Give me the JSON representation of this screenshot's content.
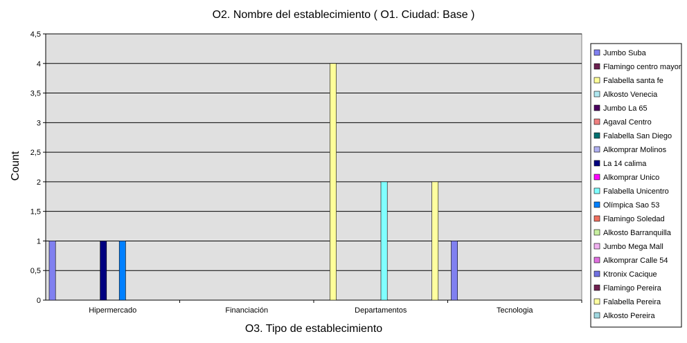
{
  "chart_data": {
    "type": "bar",
    "title": "O2. Nombre del establecimiento ( O1. Ciudad: Base )",
    "xlabel": "O3. Tipo de establecimiento",
    "ylabel": "Count",
    "categories": [
      "Hipermercado",
      "Financiación",
      "Departamentos",
      "Tecnologia"
    ],
    "ylim": [
      0,
      4.5
    ],
    "yticks": [
      "0",
      "0,5",
      "1",
      "1,5",
      "2",
      "2,5",
      "3",
      "3,5",
      "4",
      "4,5"
    ],
    "grid": true,
    "legend_position": "right",
    "plot_background": "#e0e0e0",
    "series": [
      {
        "name": "Jumbo Suba",
        "color": "#8080f0",
        "values": [
          1,
          0,
          0,
          1
        ]
      },
      {
        "name": "Flamingo centro mayor",
        "color": "#6b2050",
        "values": [
          0,
          0,
          0,
          0
        ]
      },
      {
        "name": "Falabella santa fe",
        "color": "#ffff99",
        "values": [
          0,
          0,
          4,
          0
        ]
      },
      {
        "name": "Alkosto Venecia",
        "color": "#b0e8f0",
        "values": [
          0,
          0,
          0,
          0
        ]
      },
      {
        "name": "Jumbo La 65",
        "color": "#4b0060",
        "values": [
          0,
          0,
          0,
          0
        ]
      },
      {
        "name": "Agaval Centro",
        "color": "#f08080",
        "values": [
          0,
          0,
          0,
          0
        ]
      },
      {
        "name": "Falabella San Diego",
        "color": "#007070",
        "values": [
          0,
          0,
          0,
          0
        ]
      },
      {
        "name": "Alkomprar Molinos",
        "color": "#b0b0f0",
        "values": [
          0,
          0,
          0,
          0
        ]
      },
      {
        "name": "La 14 calima",
        "color": "#000080",
        "values": [
          1,
          0,
          0,
          0
        ]
      },
      {
        "name": "Alkomprar Unico",
        "color": "#ff00ff",
        "values": [
          0,
          0,
          0,
          0
        ]
      },
      {
        "name": "Falabella Unicentro",
        "color": "#80ffff",
        "values": [
          0,
          0,
          2,
          0
        ]
      },
      {
        "name": "Olímpica Sao 53",
        "color": "#0080ff",
        "values": [
          1,
          0,
          0,
          0
        ]
      },
      {
        "name": "Flamingo Soledad",
        "color": "#f07060",
        "values": [
          0,
          0,
          0,
          0
        ]
      },
      {
        "name": "Alkosto Barranquilla",
        "color": "#c8f0a0",
        "values": [
          0,
          0,
          0,
          0
        ]
      },
      {
        "name": "Jumbo Mega Mall",
        "color": "#f0b0f0",
        "values": [
          0,
          0,
          0,
          0
        ]
      },
      {
        "name": "Alkomprar Calle 54",
        "color": "#e070e0",
        "values": [
          0,
          0,
          0,
          0
        ]
      },
      {
        "name": "Ktronix Cacique",
        "color": "#7070e0",
        "values": [
          0,
          0,
          0,
          0
        ]
      },
      {
        "name": "Flamingo Pereira",
        "color": "#702050",
        "values": [
          0,
          0,
          0,
          0
        ]
      },
      {
        "name": "Falabella Pereira",
        "color": "#ffffa0",
        "values": [
          0,
          0,
          2,
          0
        ]
      },
      {
        "name": "Alkosto Pereira",
        "color": "#a0d8e0",
        "values": [
          0,
          0,
          0,
          0
        ]
      }
    ]
  }
}
